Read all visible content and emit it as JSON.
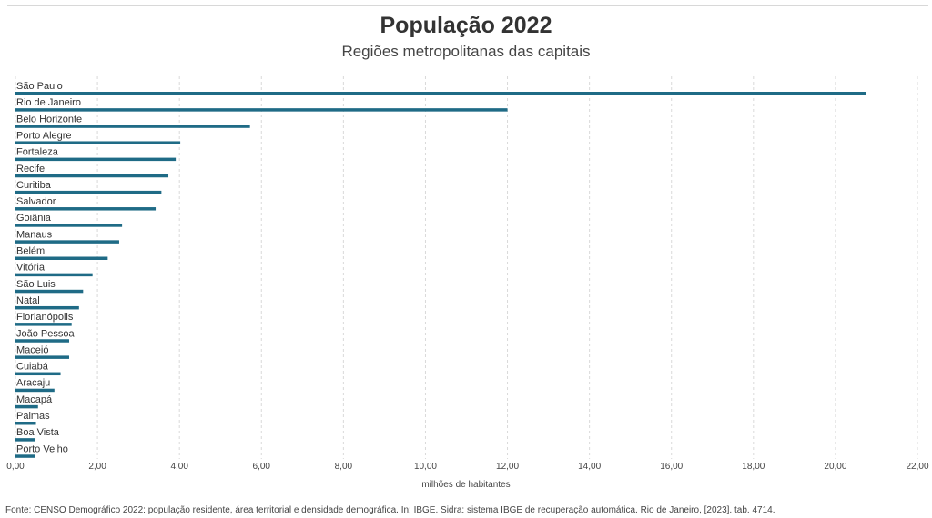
{
  "chart_data": {
    "type": "bar",
    "orientation": "horizontal",
    "title": "População 2022",
    "subtitle": "Regiões metropolitanas das capitais",
    "xlabel": "milhões de habitantes",
    "ylabel": "",
    "xlim": [
      0,
      22
    ],
    "xticks": [
      "0,00",
      "2,00",
      "4,00",
      "6,00",
      "8,00",
      "10,00",
      "12,00",
      "14,00",
      "16,00",
      "18,00",
      "20,00",
      "22,00"
    ],
    "grid": true,
    "bar_color": "#1f6b86",
    "categories": [
      "São Paulo",
      "Rio de Janeiro",
      "Belo Horizonte",
      "Porto Alegre",
      "Fortaleza",
      "Recife",
      "Curitiba",
      "Salvador",
      "Goiânia",
      "Manaus",
      "Belém",
      "Vitória",
      "São Luis",
      "Natal",
      "Florianópolis",
      "João Pessoa",
      "Maceió",
      "Cuiabá",
      "Aracaju",
      "Macapá",
      "Palmas",
      "Boa Vista",
      "Porto Velho"
    ],
    "values": [
      20.74,
      12.0,
      5.72,
      4.02,
      3.91,
      3.73,
      3.56,
      3.42,
      2.6,
      2.53,
      2.25,
      1.88,
      1.65,
      1.55,
      1.37,
      1.31,
      1.31,
      1.1,
      0.95,
      0.55,
      0.5,
      0.48,
      0.48
    ]
  },
  "source": "Fonte: CENSO Demográfico 2022: população residente, área territorial e densidade demográfica. In: IBGE. Sidra: sistema IBGE de recuperação automática. Rio de Janeiro, [2023]. tab. 4714."
}
